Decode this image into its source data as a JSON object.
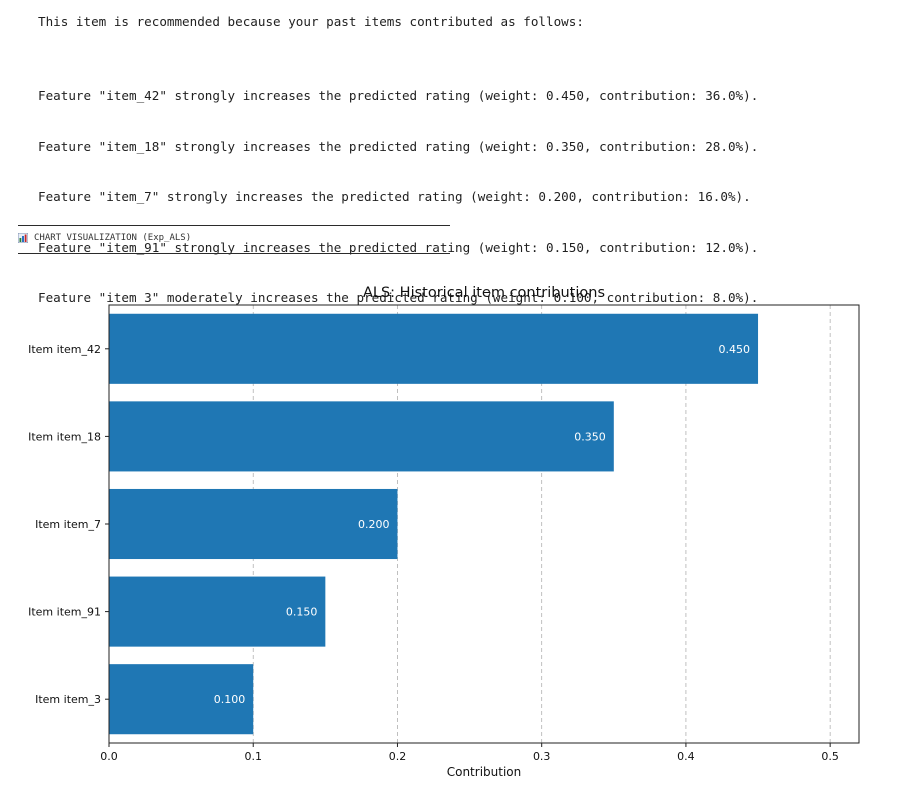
{
  "explanation": {
    "intro": "This item is recommended because your past items contributed as follows:",
    "features": [
      "Feature \"item_42\" strongly increases the predicted rating (weight: 0.450, contribution: 36.0%).",
      "Feature \"item_18\" strongly increases the predicted rating (weight: 0.350, contribution: 28.0%).",
      "Feature \"item_7\" strongly increases the predicted rating (weight: 0.200, contribution: 16.0%).",
      "Feature \"item_91\" strongly increases the predicted rating (weight: 0.150, contribution: 12.0%).",
      "Feature \"item_3\" moderately increases the predicted rating (weight: 0.100, contribution: 8.0%)."
    ]
  },
  "section": {
    "icon": "bar-chart-icon",
    "title": "CHART VISUALIZATION (Exp_ALS)"
  },
  "chart_data": {
    "type": "bar",
    "orientation": "horizontal",
    "title": "ALS: Historical item contributions",
    "xlabel": "Contribution",
    "ylabel": "",
    "categories": [
      "Item item_42",
      "Item item_18",
      "Item item_7",
      "Item item_91",
      "Item item_3"
    ],
    "values": [
      0.45,
      0.35,
      0.2,
      0.15,
      0.1
    ],
    "data_labels": [
      "0.450",
      "0.350",
      "0.200",
      "0.150",
      "0.100"
    ],
    "xlim": [
      0,
      0.52
    ],
    "xticks": [
      0.0,
      0.1,
      0.2,
      0.3,
      0.4,
      0.5
    ],
    "xtick_labels": [
      "0.0",
      "0.1",
      "0.2",
      "0.3",
      "0.4",
      "0.5"
    ],
    "grid": "vertical dashed",
    "bar_color": "#1f77b4",
    "label_color": "#ffffff"
  }
}
